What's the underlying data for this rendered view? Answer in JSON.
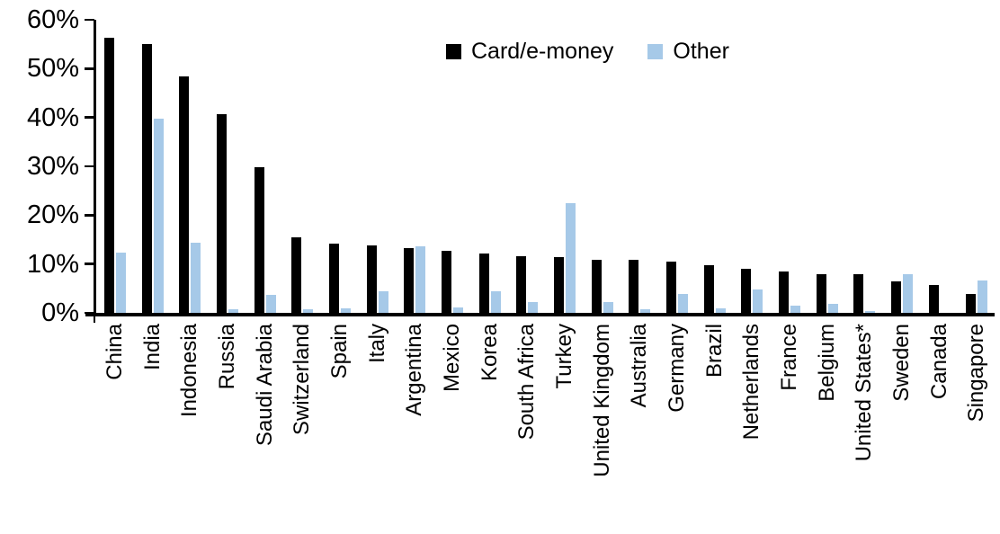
{
  "chart_data": {
    "type": "bar",
    "title": "",
    "xlabel": "",
    "ylabel": "",
    "ylim": [
      0,
      60
    ],
    "ytick_step": 10,
    "yticks": [
      "60%",
      "50%",
      "40%",
      "30%",
      "20%",
      "10%",
      "0%"
    ],
    "grid": false,
    "legend_position": "top-center",
    "categories": [
      "China",
      "India",
      "Indonesia",
      "Russia",
      "Saudi Arabia",
      "Switzerland",
      "Spain",
      "Italy",
      "Argentina",
      "Mexico",
      "Korea",
      "South Africa",
      "Turkey",
      "United Kingdom",
      "Australia",
      "Germany",
      "Brazil",
      "Netherlands",
      "France",
      "Belgium",
      "United States*",
      "Sweden",
      "Canada",
      "Singapore"
    ],
    "series": [
      {
        "name": "Card/e-money",
        "color": "#000000",
        "values": [
          56.4,
          55.1,
          48.4,
          40.6,
          29.8,
          15.5,
          14.1,
          13.9,
          13.2,
          12.8,
          12.2,
          11.6,
          11.4,
          10.9,
          10.8,
          10.5,
          9.8,
          9.1,
          8.5,
          7.9,
          7.9,
          6.4,
          5.8,
          3.8
        ]
      },
      {
        "name": "Other",
        "color": "#a6c9e8",
        "values": [
          12.3,
          39.8,
          14.4,
          0.8,
          3.7,
          0.7,
          0.9,
          4.4,
          13.7,
          1.2,
          4.4,
          2.3,
          22.5,
          2.3,
          0.8,
          3.9,
          1.0,
          4.8,
          1.5,
          1.9,
          0.3,
          8.0,
          0.0,
          6.6
        ]
      }
    ]
  },
  "axes": {
    "y_axis_color": "#000000",
    "x_axis_color": "#000000"
  }
}
